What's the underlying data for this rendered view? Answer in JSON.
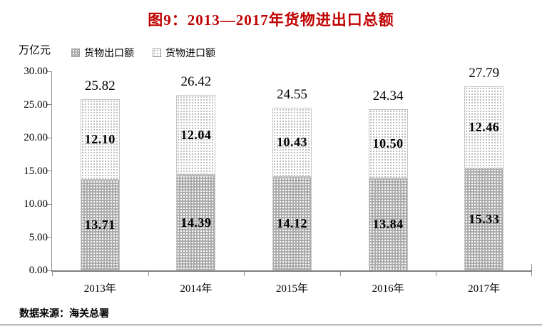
{
  "title": "图9：2013—2017年货物进出口总额",
  "unit_label": "万亿元",
  "legend": [
    {
      "label": "货物出口额",
      "swatch": "gray-dotted-swatch"
    },
    {
      "label": "货物进口额",
      "swatch": "light-dotted-swatch"
    }
  ],
  "source": "数据来源：海关总署",
  "colors": {
    "title": "#c00000",
    "axis": "#8c8c8c",
    "export_fill": "#a9a9a9",
    "import_fill": "#ffffff",
    "text": "#000000"
  },
  "chart_data": {
    "type": "bar",
    "stacked": true,
    "title": "图9：2013—2017年货物进出口总额",
    "ylabel": "万亿元",
    "categories": [
      "2013年",
      "2014年",
      "2015年",
      "2016年",
      "2017年"
    ],
    "series": [
      {
        "name": "货物出口额",
        "values": [
          13.71,
          14.39,
          14.12,
          13.84,
          15.33
        ]
      },
      {
        "name": "货物进口额",
        "values": [
          12.1,
          12.04,
          10.43,
          10.5,
          12.46
        ]
      }
    ],
    "totals": [
      25.82,
      26.42,
      24.55,
      24.34,
      27.79
    ],
    "ylim": [
      0,
      30
    ],
    "ytick_step": 5,
    "ytick_labels": [
      "0.00",
      "5.00",
      "10.00",
      "15.00",
      "20.00",
      "25.00",
      "30.00"
    ],
    "grid": false,
    "legend_position": "top-left",
    "value_format": "2-decimals"
  }
}
